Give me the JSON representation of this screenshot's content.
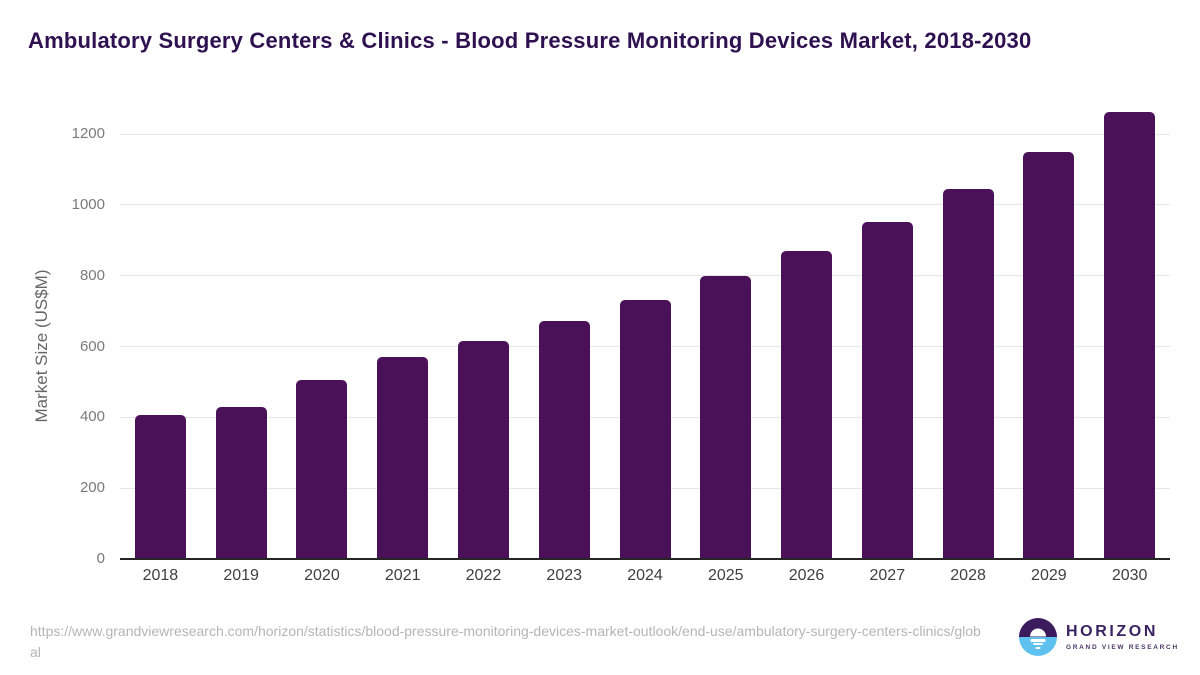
{
  "header": {
    "title": "Ambulatory Surgery Centers & Clinics - Blood Pressure Monitoring Devices Market, 2018-2030"
  },
  "chart_data": {
    "type": "bar",
    "title": "Ambulatory Surgery Centers & Clinics - Blood Pressure Monitoring Devices Market, 2018-2030",
    "categories": [
      "2018",
      "2019",
      "2020",
      "2021",
      "2022",
      "2023",
      "2024",
      "2025",
      "2026",
      "2027",
      "2028",
      "2029",
      "2030"
    ],
    "values": [
      408,
      430,
      506,
      569,
      616,
      672,
      731,
      800,
      871,
      952,
      1045,
      1149,
      1263
    ],
    "xlabel": "",
    "ylabel": "Market Size (US$M)",
    "ylim": [
      0,
      1300
    ],
    "yticks": [
      0,
      200,
      400,
      600,
      800,
      1000,
      1200
    ],
    "grid": true,
    "legend": false,
    "bar_color": "#4a1158",
    "gridline_color": "#e7e7e7"
  },
  "footer": {
    "source_url": "https://www.grandviewresearch.com/horizon/statistics/blood-pressure-monitoring-devices-market-outlook/end-use/ambulatory-surgery-centers-clinics/global",
    "logo": {
      "name": "HORIZON",
      "subtitle": "GRAND VIEW RESEARCH",
      "icon": "horizon-sunrise-circle-icon",
      "purple": "#3b1b5c",
      "blue": "#5ec1ef"
    }
  }
}
